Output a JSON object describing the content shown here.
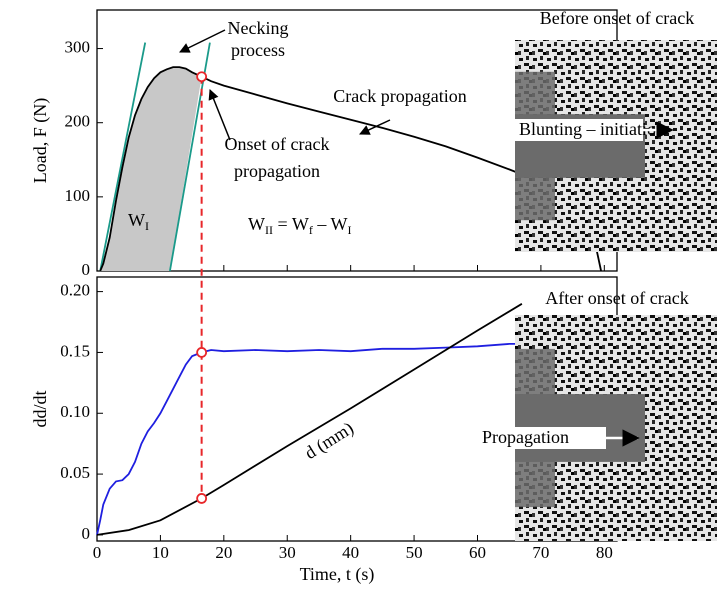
{
  "chart_data": [
    {
      "type": "line",
      "ylabel": "Load, F (N)",
      "x": [
        0.5,
        1,
        2,
        3,
        4,
        5,
        6,
        7,
        8,
        9,
        10,
        11,
        12,
        13,
        14,
        15,
        16.5,
        18,
        20,
        25,
        30,
        35,
        40,
        45,
        50,
        55,
        60,
        65,
        70,
        75,
        78,
        79.5
      ],
      "values": [
        0,
        10,
        45,
        95,
        140,
        180,
        210,
        232,
        248,
        260,
        268,
        272,
        275,
        275,
        273,
        268,
        262,
        256,
        250,
        238,
        226,
        215,
        204,
        193,
        181,
        168,
        153,
        137,
        120,
        100,
        60,
        0
      ],
      "color": "#000000",
      "fit_lines": [
        {
          "x": [
            0.5,
            7.6
          ],
          "values": [
            0,
            308
          ]
        },
        {
          "x": [
            11.5,
            17.8
          ],
          "values": [
            0,
            308
          ]
        }
      ],
      "fit_color": "#1a9a8a",
      "shade_color": "#c8c8c8",
      "onset": {
        "x": 16.5,
        "value": 262
      },
      "onset_color": "#e8262a",
      "xlim": [
        0,
        82
      ],
      "ylim": [
        0,
        352
      ],
      "xticks": [
        0,
        10,
        20,
        30,
        40,
        50,
        60,
        70,
        80
      ],
      "yticks": [
        0,
        100,
        200,
        300
      ],
      "annotations": [
        [
          "Necking",
          "process"
        ],
        [
          "Onset of crack",
          "propagation"
        ],
        [
          "Crack propagation"
        ]
      ],
      "work_initiation": [
        [
          "W",
          "I"
        ]
      ],
      "work_propagation": [
        [
          "W",
          "II"
        ],
        [
          " = W",
          "f"
        ],
        [
          " – W",
          "I"
        ]
      ]
    },
    {
      "type": "line",
      "xlabel": "Time, t (s)",
      "ylabel": "dd/dt",
      "ylabel_color": "#1f1fe0",
      "series": [
        {
          "color": "#1f1fe0",
          "x": [
            0,
            0.5,
            1,
            2,
            3,
            4,
            5,
            6,
            7,
            8,
            9,
            10,
            11,
            12,
            13,
            14,
            15,
            16.5,
            18,
            20,
            25,
            30,
            35,
            40,
            45,
            50,
            55,
            60,
            65,
            67
          ],
          "values": [
            0,
            0.012,
            0.025,
            0.038,
            0.044,
            0.045,
            0.05,
            0.06,
            0.075,
            0.085,
            0.092,
            0.1,
            0.11,
            0.12,
            0.13,
            0.14,
            0.147,
            0.15,
            0.152,
            0.151,
            0.152,
            0.151,
            0.152,
            0.151,
            0.153,
            0.153,
            0.154,
            0.155,
            0.157,
            0.157
          ]
        },
        {
          "name": "d (mm)",
          "color": "#000000",
          "x": [
            0,
            5,
            10,
            16.5,
            20,
            30,
            40,
            50,
            60,
            67
          ],
          "values": [
            0,
            0.004,
            0.012,
            0.03,
            0.041,
            0.073,
            0.104,
            0.136,
            0.168,
            0.19
          ]
        }
      ],
      "onset": [
        {
          "x": 16.5,
          "value": 0.15
        },
        {
          "x": 16.5,
          "value": 0.03
        }
      ],
      "xlim": [
        0,
        82
      ],
      "ylim": [
        -0.005,
        0.212
      ],
      "xticks": [
        0,
        10,
        20,
        30,
        40,
        50,
        60,
        70,
        80
      ],
      "yticks": [
        0,
        0.05,
        {
          "value": 0.1,
          "label": "0.10"
        },
        0.15,
        {
          "value": 0.2,
          "label": "0.20"
        }
      ]
    }
  ],
  "insets": [
    {
      "title": "Before onset of crack",
      "label": "Blunting – initiation"
    },
    {
      "title": "After onset of crack",
      "label": "Propagation"
    }
  ]
}
